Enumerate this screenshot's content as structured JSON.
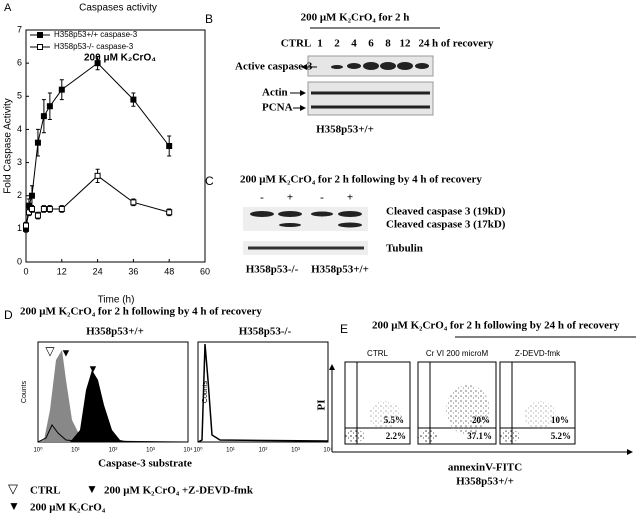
{
  "chart_data": {
    "type": "line",
    "panel_label": "A",
    "title": "Caspases activity",
    "annotation": "200 μM K₂CrO₄",
    "x_label": "Time (h)",
    "y_label": "Fold Caspase Activity",
    "x": [
      0,
      1,
      2,
      4,
      6,
      8,
      12,
      24,
      36,
      48
    ],
    "series": [
      {
        "name": "H358p53+/+ caspase-3",
        "color": "#000000",
        "marker": "filled",
        "values": [
          1.0,
          1.7,
          2.0,
          3.6,
          4.4,
          4.7,
          5.2,
          6.0,
          4.9,
          3.5
        ],
        "errors": [
          0.1,
          0.2,
          0.3,
          0.4,
          0.5,
          0.4,
          0.3,
          0.2,
          0.2,
          0.3
        ]
      },
      {
        "name": "H358p53-/- caspase-3",
        "color": "#000000",
        "marker": "open",
        "values": [
          1.1,
          1.5,
          1.6,
          1.4,
          1.6,
          1.6,
          1.6,
          2.6,
          1.8,
          1.5
        ],
        "errors": [
          0.1,
          0.1,
          0.1,
          0.1,
          0.1,
          0.1,
          0.1,
          0.2,
          0.1,
          0.1
        ]
      }
    ],
    "xlim": [
      0,
      60
    ],
    "xticks": [
      0,
      12,
      24,
      36,
      48,
      60
    ],
    "ylim": [
      0,
      7
    ],
    "yticks": [
      0,
      1,
      2,
      3,
      4,
      5,
      6,
      7
    ]
  },
  "panel_b": {
    "label": "B",
    "title": "200 μM K₂CrO₄ for 2 h",
    "control": "CTRL",
    "lanes": [
      "1",
      "2",
      "4",
      "6",
      "8",
      "12",
      "24"
    ],
    "lane_suffix": "h of recovery",
    "rows": [
      "Active caspase-3",
      "Actin",
      "PCNA"
    ],
    "cell_line": "H358p53+/+"
  },
  "panel_c": {
    "label": "C",
    "title": "200 μM K₂CrO₄ for 2 h following by 4 h of recovery",
    "lanes": [
      "-",
      "+",
      "-",
      "+"
    ],
    "bands": [
      "Cleaved caspase 3 (19kD)",
      "Cleaved caspase 3 (17kD)",
      "Tubulin"
    ],
    "groups": [
      "H358p53-/-",
      "H358p53+/+"
    ]
  },
  "panel_d": {
    "label": "D",
    "title": "200 μM K₂CrO₄ for 2 h following by 4 h of recovery",
    "plots": [
      "H358p53+/+",
      "H358p53-/-"
    ],
    "y_label": "Counts",
    "x_label": "Caspase-3 substrate",
    "x_ticks": [
      "10⁰",
      "10¹",
      "10²",
      "10³",
      "10⁴"
    ],
    "legend": [
      "CTRL",
      "200 μM K₂CrO₄ +Z-DEVD-fmk",
      "200 μM K₂CrO₄"
    ]
  },
  "panel_e": {
    "label": "E",
    "title": "200 μM K₂CrO₄ for 2 h following by 24 h of recovery",
    "plots": [
      {
        "title": "CTRL",
        "upper": "5.5%",
        "lower": "2.2%"
      },
      {
        "title": "Cr VI 200 microM",
        "upper": "20%",
        "lower": "37.1%"
      },
      {
        "title": "Z-DEVD-fmk",
        "upper": "10%",
        "lower": "5.2%"
      }
    ],
    "y_label": "PI",
    "x_label": "annexinV-FITC",
    "cell_line": "H358p53+/+"
  }
}
